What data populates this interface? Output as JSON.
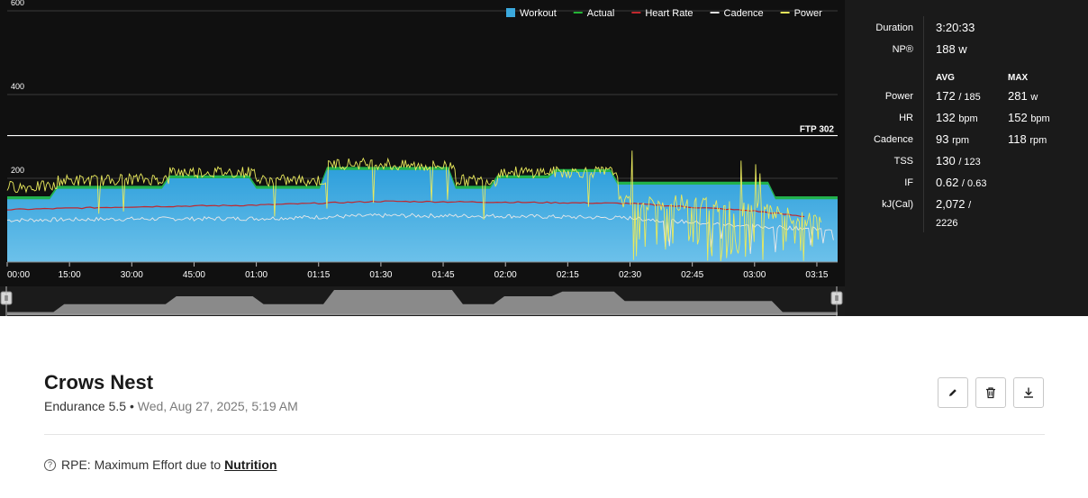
{
  "chart": {
    "legend": [
      {
        "label": "Workout",
        "color": "#3ba9dd",
        "kind": "box"
      },
      {
        "label": "Actual",
        "color": "#24b336",
        "kind": "line"
      },
      {
        "label": "Heart Rate",
        "color": "#c1272d",
        "kind": "line"
      },
      {
        "label": "Cadence",
        "color": "#e0e0e0",
        "kind": "line"
      },
      {
        "label": "Power",
        "color": "#e3e35a",
        "kind": "line"
      }
    ],
    "y_ticks": [
      "600",
      "400",
      "200"
    ],
    "ftp_label": "FTP 302",
    "x_ticks": [
      "00:00",
      "15:00",
      "30:00",
      "45:00",
      "01:00",
      "01:15",
      "01:30",
      "01:45",
      "02:00",
      "02:15",
      "02:30",
      "02:45",
      "03:00",
      "03:15"
    ]
  },
  "chart_data": {
    "type": "area",
    "x_unit": "minutes",
    "ylim": [
      0,
      600
    ],
    "ftp": 302,
    "series": [
      {
        "name": "Workout",
        "x": [
          0,
          12,
          25,
          39,
          60,
          77,
          92,
          108,
          118,
          132,
          147,
          167,
          185,
          192,
          200
        ],
        "values": [
          150,
          175,
          175,
          200,
          175,
          220,
          220,
          175,
          200,
          215,
          185,
          185,
          150,
          150,
          150
        ]
      },
      {
        "name": "Actual",
        "x": [
          0,
          12,
          25,
          39,
          60,
          77,
          92,
          108,
          118,
          132,
          147,
          167,
          185,
          192,
          200
        ],
        "values": [
          157,
          182,
          182,
          207,
          182,
          227,
          227,
          182,
          207,
          222,
          192,
          192,
          157,
          157,
          157
        ]
      },
      {
        "name": "Heart Rate",
        "x": [
          0,
          30,
          60,
          90,
          120,
          150,
          180,
          200
        ],
        "values": [
          125,
          132,
          136,
          145,
          143,
          140,
          122,
          100
        ]
      },
      {
        "name": "Cadence",
        "x": [
          0,
          30,
          60,
          90,
          120,
          150,
          180,
          200
        ],
        "values": [
          100,
          103,
          104,
          111,
          110,
          105,
          85,
          78
        ]
      },
      {
        "name": "Power",
        "x": [
          0,
          12,
          25,
          39,
          60,
          77,
          92,
          108,
          118,
          132,
          147,
          167,
          185,
          200
        ],
        "values": [
          180,
          195,
          198,
          215,
          195,
          235,
          230,
          195,
          215,
          215,
          145,
          140,
          120,
          80
        ]
      }
    ],
    "overview_profile": {
      "x": [
        0,
        12,
        25,
        39,
        60,
        77,
        92,
        108,
        118,
        132,
        147,
        167,
        185,
        200
      ],
      "values": [
        150,
        175,
        175,
        200,
        175,
        220,
        220,
        175,
        200,
        215,
        185,
        185,
        150,
        150
      ]
    }
  },
  "stats": {
    "duration_label": "Duration",
    "duration": "3:20:33",
    "np_label": "NP®",
    "np": "188 w",
    "avg_header": "AVG",
    "max_header": "MAX",
    "rows": [
      {
        "label": "Power",
        "avg": "172",
        "avg_sub": "/ 185",
        "max": "281",
        "max_unit": "w"
      },
      {
        "label": "HR",
        "avg": "132",
        "avg_sub": "bpm",
        "max": "152",
        "max_unit": "bpm"
      },
      {
        "label": "Cadence",
        "avg": "93",
        "avg_sub": "rpm",
        "max": "118",
        "max_unit": "rpm"
      },
      {
        "label": "TSS",
        "avg": "130",
        "avg_sub": "/ 123",
        "max": "",
        "max_unit": ""
      },
      {
        "label": "IF",
        "avg": "0.62",
        "avg_sub": "/ 0.63",
        "max": "",
        "max_unit": ""
      },
      {
        "label": "kJ(Cal)",
        "avg": "2,072",
        "avg_sub": "/",
        "max": "",
        "max_unit": ""
      }
    ],
    "kj_second_line": "2226"
  },
  "workout": {
    "title": "Crows Nest",
    "type": "Endurance 5.5",
    "separator": "•",
    "date": "Wed, Aug 27, 2025, 5:19 AM",
    "rpe_prefix": "RPE: Maximum Effort due to",
    "rpe_link": "Nutrition",
    "help_glyph": "?"
  },
  "actions": {
    "edit_icon": "pencil-icon",
    "delete_icon": "trash-icon",
    "download_icon": "download-icon"
  }
}
